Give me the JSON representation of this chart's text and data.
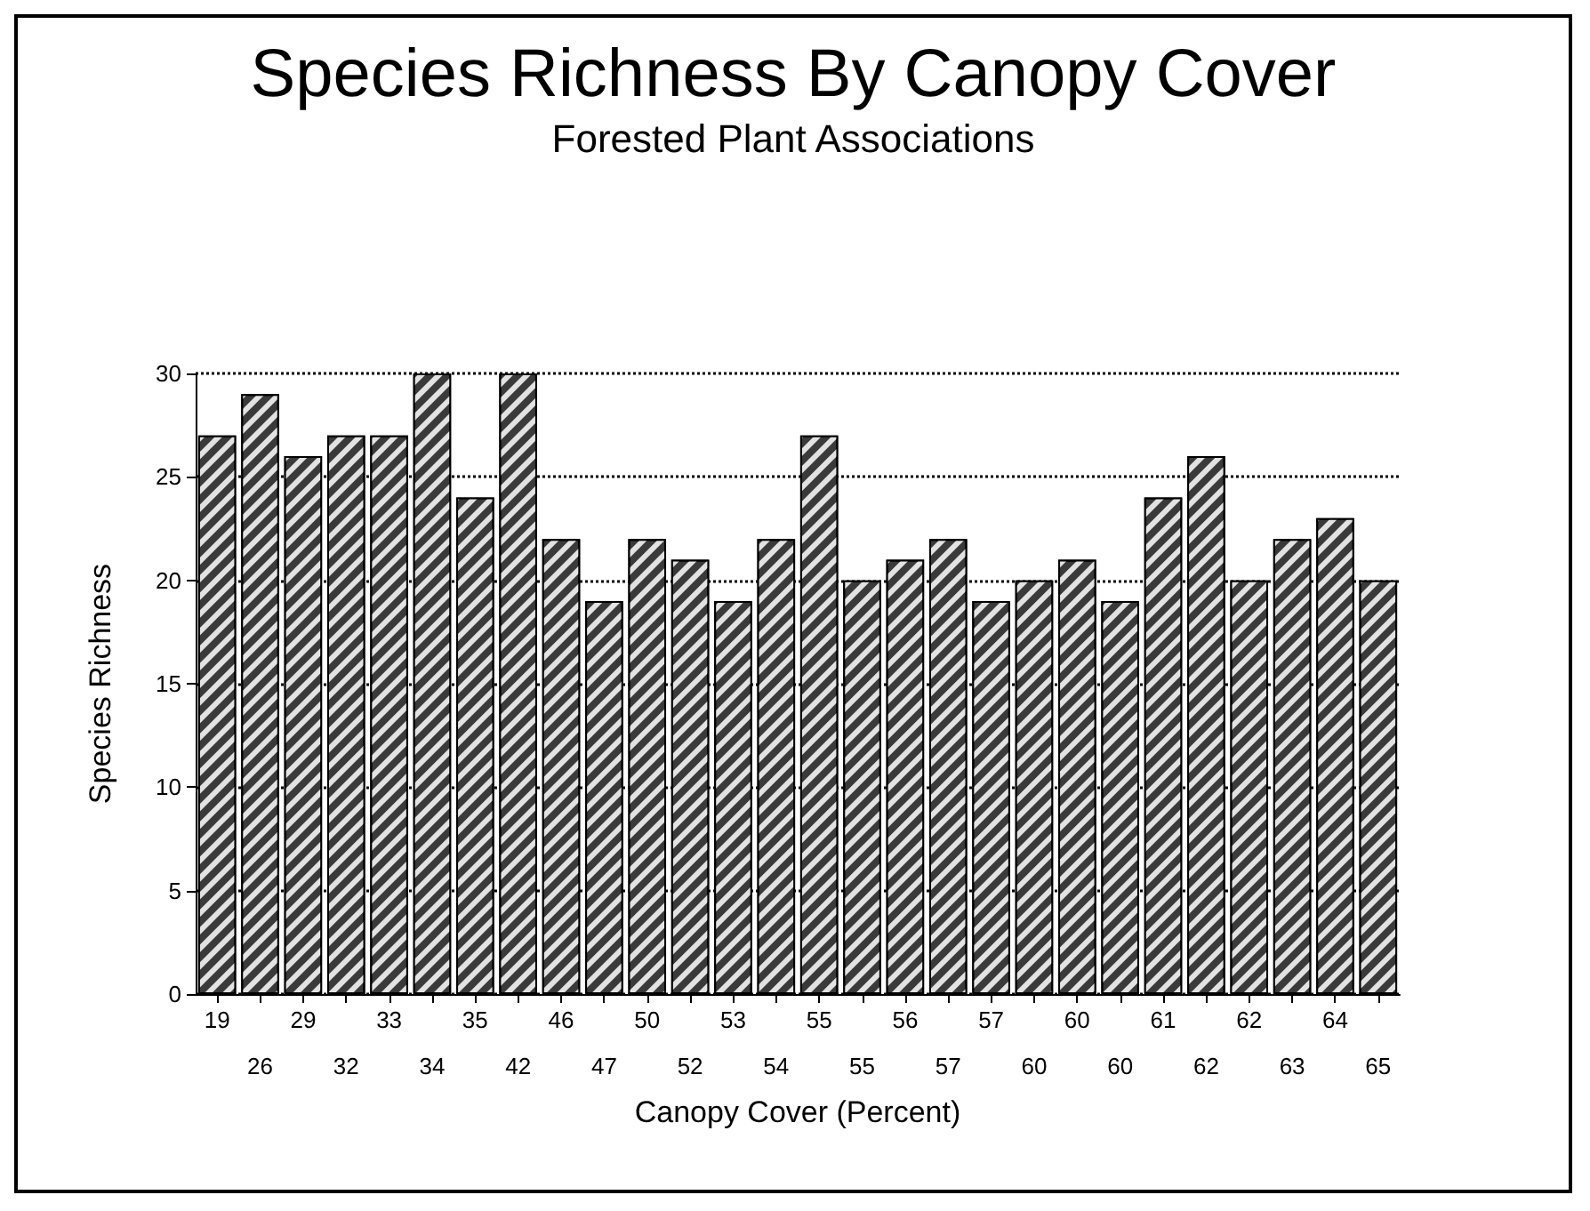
{
  "chart_data": {
    "type": "bar",
    "title": "Species Richness By Canopy Cover",
    "subtitle": "Forested Plant Associations",
    "xlabel": "Canopy Cover (Percent)",
    "ylabel": "Species Richness",
    "categories": [
      "19",
      "26",
      "29",
      "32",
      "33",
      "34",
      "35",
      "42",
      "46",
      "47",
      "50",
      "52",
      "53",
      "54",
      "55",
      "55",
      "56",
      "57",
      "57",
      "60",
      "60",
      "60",
      "61",
      "62",
      "62",
      "63",
      "64",
      "65"
    ],
    "values": [
      27,
      29,
      26,
      27,
      27,
      30,
      24,
      30,
      22,
      19,
      22,
      21,
      19,
      22,
      27,
      20,
      21,
      22,
      19,
      20,
      21,
      19,
      24,
      26,
      20,
      22,
      23,
      20
    ],
    "color": "#3a3a3a",
    "ylim": [
      0,
      30
    ],
    "yticks": [
      0,
      5,
      10,
      15,
      20,
      25,
      30
    ],
    "grid": "y"
  }
}
